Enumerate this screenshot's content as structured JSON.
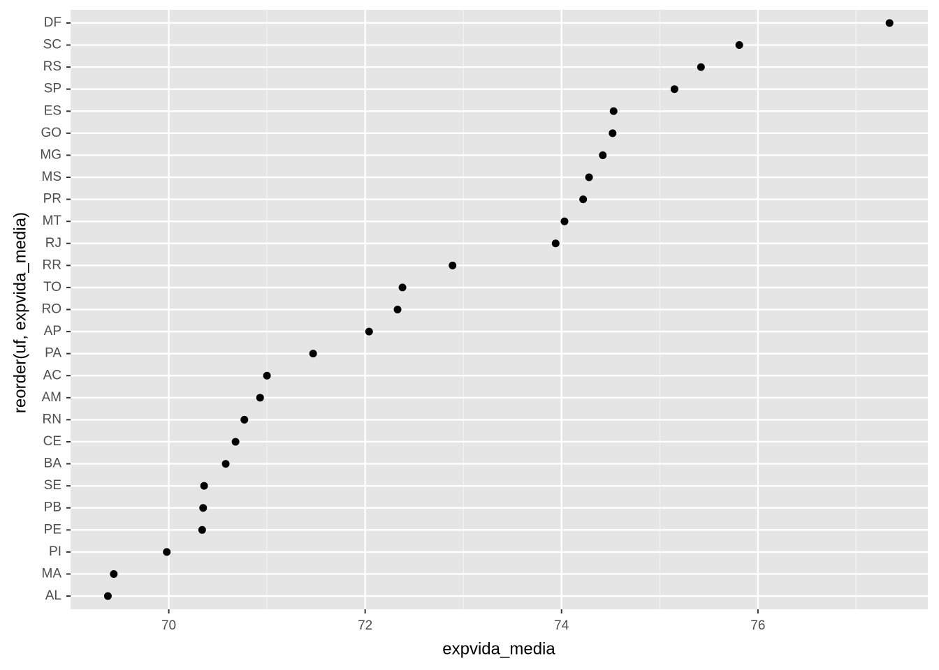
{
  "chart_data": {
    "type": "dotplot",
    "x_label": "expvida_media",
    "y_label": "reorder(uf, expvida_media)",
    "categories": [
      "DF",
      "SC",
      "RS",
      "SP",
      "ES",
      "GO",
      "MG",
      "MS",
      "PR",
      "MT",
      "RJ",
      "RR",
      "TO",
      "RO",
      "AP",
      "PA",
      "AC",
      "AM",
      "RN",
      "CE",
      "BA",
      "SE",
      "PB",
      "PE",
      "PI",
      "MA",
      "AL"
    ],
    "values": [
      77.34,
      75.81,
      75.42,
      75.15,
      74.53,
      74.52,
      74.42,
      74.28,
      74.22,
      74.03,
      73.94,
      72.89,
      72.38,
      72.33,
      72.04,
      71.47,
      71.0,
      70.93,
      70.77,
      70.68,
      70.58,
      70.36,
      70.35,
      70.34,
      69.98,
      69.44,
      69.38
    ],
    "color": "#000000",
    "xlim": [
      69.0,
      77.73
    ],
    "xticks": [
      70,
      72,
      74,
      76
    ],
    "minor_xticks": [
      69,
      71,
      73,
      75,
      77
    ],
    "grid": true
  }
}
